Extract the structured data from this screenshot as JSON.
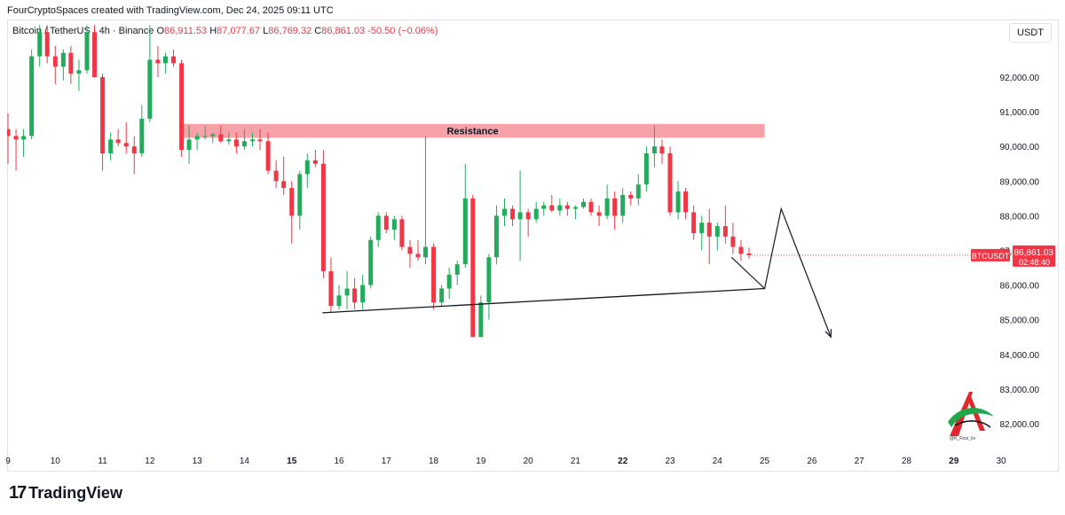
{
  "header": {
    "caption": "FourCryptoSpaces created with TradingView.com, Dec 24, 2025 09:11 UTC",
    "symbol": "Bitcoin / TetherUS · 4h · Binance",
    "o_label": "O",
    "o_value": "86,911.53",
    "h_label": "H",
    "h_value": "87,077.67",
    "l_label": "L",
    "l_value": "86,769.32",
    "c_label": "C",
    "c_value": "86,861.03",
    "change": "-50.50 (−0.06%)"
  },
  "currency_button": "USDT",
  "branding": {
    "logo_mark": "17",
    "logo_word": "TradingView",
    "watermark_text": "@K_Four_kv"
  },
  "colors": {
    "up": "#22ab5a",
    "down": "#f23645",
    "resistance": "#f7a1a8",
    "price_tag": "#f23645"
  },
  "chart_data": {
    "type": "candlestick",
    "price_axis": {
      "ticks": [
        "92,000.00",
        "91,000.00",
        "90,000.00",
        "89,000.00",
        "88,000.00",
        "87,000.00",
        "86,000.00",
        "85,000.00",
        "84,000.00",
        "83,000.00",
        "82,000.00"
      ],
      "ylim": [
        81400,
        93500
      ]
    },
    "time_axis": {
      "ticks": [
        "9",
        "10",
        "11",
        "12",
        "13",
        "14",
        "15",
        "16",
        "17",
        "18",
        "19",
        "20",
        "21",
        "22",
        "23",
        "24",
        "25",
        "26",
        "27",
        "28",
        "29",
        "30"
      ],
      "bold": [
        "15",
        "22",
        "29"
      ]
    },
    "current_price": {
      "symbol": "BTCUSDT",
      "price": "86,861.03",
      "countdown": "02:48:40",
      "value": 86861
    },
    "resistance_zone": {
      "label": "Resistance",
      "low": 90250,
      "high": 90650,
      "from_day": 12.65,
      "to_day": 25.0
    },
    "support_line": {
      "from": [
        15.65,
        85200
      ],
      "to": [
        25.0,
        85900
      ]
    },
    "projection": [
      [
        24.3,
        86800
      ],
      [
        25.0,
        85900
      ],
      [
        25.35,
        88200
      ],
      [
        26.4,
        84500
      ]
    ],
    "candles": [
      {
        "d": 9.0,
        "o": 90500,
        "h": 90950,
        "l": 89500,
        "c": 90300
      },
      {
        "d": 9.17,
        "o": 90300,
        "h": 90500,
        "l": 89300,
        "c": 90200
      },
      {
        "d": 9.33,
        "o": 90200,
        "h": 90500,
        "l": 89700,
        "c": 90300
      },
      {
        "d": 9.5,
        "o": 90300,
        "h": 92800,
        "l": 90200,
        "c": 92600
      },
      {
        "d": 9.67,
        "o": 92600,
        "h": 93500,
        "l": 92300,
        "c": 93300
      },
      {
        "d": 9.83,
        "o": 93300,
        "h": 93500,
        "l": 92400,
        "c": 92600
      },
      {
        "d": 10.0,
        "o": 92600,
        "h": 92900,
        "l": 91800,
        "c": 92300
      },
      {
        "d": 10.17,
        "o": 92300,
        "h": 92800,
        "l": 91900,
        "c": 92700
      },
      {
        "d": 10.33,
        "o": 92700,
        "h": 92900,
        "l": 91800,
        "c": 92100
      },
      {
        "d": 10.5,
        "o": 92100,
        "h": 92500,
        "l": 91600,
        "c": 92200
      },
      {
        "d": 10.67,
        "o": 92200,
        "h": 93500,
        "l": 92100,
        "c": 93300
      },
      {
        "d": 10.83,
        "o": 93300,
        "h": 93500,
        "l": 92000,
        "c": 92000
      },
      {
        "d": 11.0,
        "o": 92000,
        "h": 92100,
        "l": 89300,
        "c": 89800
      },
      {
        "d": 11.17,
        "o": 89800,
        "h": 90400,
        "l": 89600,
        "c": 90200
      },
      {
        "d": 11.33,
        "o": 90200,
        "h": 90500,
        "l": 90000,
        "c": 90100
      },
      {
        "d": 11.5,
        "o": 90100,
        "h": 90700,
        "l": 89800,
        "c": 90000
      },
      {
        "d": 11.67,
        "o": 90000,
        "h": 90300,
        "l": 89200,
        "c": 89800
      },
      {
        "d": 11.83,
        "o": 89800,
        "h": 91200,
        "l": 89700,
        "c": 90800
      },
      {
        "d": 12.0,
        "o": 90800,
        "h": 93500,
        "l": 90700,
        "c": 92500
      },
      {
        "d": 12.17,
        "o": 92500,
        "h": 92900,
        "l": 92000,
        "c": 92400
      },
      {
        "d": 12.33,
        "o": 92400,
        "h": 92700,
        "l": 92100,
        "c": 92600
      },
      {
        "d": 12.5,
        "o": 92600,
        "h": 92800,
        "l": 92300,
        "c": 92400
      },
      {
        "d": 12.67,
        "o": 92400,
        "h": 92500,
        "l": 89700,
        "c": 89900
      },
      {
        "d": 12.83,
        "o": 89900,
        "h": 90600,
        "l": 89500,
        "c": 90200
      },
      {
        "d": 13.0,
        "o": 90200,
        "h": 90400,
        "l": 89900,
        "c": 90300
      },
      {
        "d": 13.17,
        "o": 90300,
        "h": 90600,
        "l": 90200,
        "c": 90300
      },
      {
        "d": 13.33,
        "o": 90300,
        "h": 90400,
        "l": 90100,
        "c": 90350
      },
      {
        "d": 13.5,
        "o": 90350,
        "h": 90600,
        "l": 90100,
        "c": 90150
      },
      {
        "d": 13.67,
        "o": 90150,
        "h": 90400,
        "l": 90050,
        "c": 90200
      },
      {
        "d": 13.83,
        "o": 90200,
        "h": 90400,
        "l": 89800,
        "c": 90000
      },
      {
        "d": 14.0,
        "o": 90000,
        "h": 90500,
        "l": 89900,
        "c": 90150
      },
      {
        "d": 14.17,
        "o": 90150,
        "h": 90400,
        "l": 90000,
        "c": 90200
      },
      {
        "d": 14.33,
        "o": 90200,
        "h": 90500,
        "l": 89900,
        "c": 90150
      },
      {
        "d": 14.5,
        "o": 90150,
        "h": 90400,
        "l": 89200,
        "c": 89300
      },
      {
        "d": 14.67,
        "o": 89300,
        "h": 89600,
        "l": 88800,
        "c": 89000
      },
      {
        "d": 14.83,
        "o": 89000,
        "h": 89700,
        "l": 88600,
        "c": 88800
      },
      {
        "d": 15.0,
        "o": 88800,
        "h": 89000,
        "l": 87200,
        "c": 88000
      },
      {
        "d": 15.17,
        "o": 88000,
        "h": 89300,
        "l": 87600,
        "c": 89200
      },
      {
        "d": 15.33,
        "o": 89200,
        "h": 89800,
        "l": 88800,
        "c": 89600
      },
      {
        "d": 15.5,
        "o": 89600,
        "h": 89900,
        "l": 89400,
        "c": 89500
      },
      {
        "d": 15.67,
        "o": 89500,
        "h": 89900,
        "l": 86200,
        "c": 86400
      },
      {
        "d": 15.83,
        "o": 86400,
        "h": 86800,
        "l": 85200,
        "c": 85400
      },
      {
        "d": 16.0,
        "o": 85400,
        "h": 86000,
        "l": 85300,
        "c": 85700
      },
      {
        "d": 16.17,
        "o": 85700,
        "h": 86400,
        "l": 85300,
        "c": 85900
      },
      {
        "d": 16.33,
        "o": 85900,
        "h": 86200,
        "l": 85300,
        "c": 85500
      },
      {
        "d": 16.5,
        "o": 85500,
        "h": 86300,
        "l": 85300,
        "c": 86000
      },
      {
        "d": 16.67,
        "o": 86000,
        "h": 87400,
        "l": 85900,
        "c": 87300
      },
      {
        "d": 16.83,
        "o": 87300,
        "h": 88100,
        "l": 87100,
        "c": 88000
      },
      {
        "d": 17.0,
        "o": 88000,
        "h": 88100,
        "l": 87500,
        "c": 87600
      },
      {
        "d": 17.17,
        "o": 87600,
        "h": 88000,
        "l": 87300,
        "c": 87900
      },
      {
        "d": 17.33,
        "o": 87900,
        "h": 88000,
        "l": 87000,
        "c": 87100
      },
      {
        "d": 17.5,
        "o": 87100,
        "h": 87300,
        "l": 86500,
        "c": 86900
      },
      {
        "d": 17.67,
        "o": 86900,
        "h": 87300,
        "l": 86700,
        "c": 86800
      },
      {
        "d": 17.83,
        "o": 86800,
        "h": 90300,
        "l": 86600,
        "c": 87100
      },
      {
        "d": 18.0,
        "o": 87100,
        "h": 87200,
        "l": 85300,
        "c": 85500
      },
      {
        "d": 18.17,
        "o": 85500,
        "h": 86000,
        "l": 85400,
        "c": 85900
      },
      {
        "d": 18.33,
        "o": 85900,
        "h": 86500,
        "l": 85600,
        "c": 86300
      },
      {
        "d": 18.5,
        "o": 86300,
        "h": 86700,
        "l": 86000,
        "c": 86600
      },
      {
        "d": 18.67,
        "o": 86600,
        "h": 89500,
        "l": 86500,
        "c": 88500
      },
      {
        "d": 18.83,
        "o": 88500,
        "h": 88600,
        "l": 84500,
        "c": 84500
      },
      {
        "d": 19.0,
        "o": 84500,
        "h": 85700,
        "l": 84500,
        "c": 85500
      },
      {
        "d": 19.17,
        "o": 85500,
        "h": 86900,
        "l": 85000,
        "c": 86800
      },
      {
        "d": 19.33,
        "o": 86800,
        "h": 88300,
        "l": 86600,
        "c": 88000
      },
      {
        "d": 19.5,
        "o": 88000,
        "h": 88500,
        "l": 87700,
        "c": 88200
      },
      {
        "d": 19.67,
        "o": 88200,
        "h": 88300,
        "l": 87700,
        "c": 87900
      },
      {
        "d": 19.83,
        "o": 87900,
        "h": 89300,
        "l": 86700,
        "c": 88100
      },
      {
        "d": 20.0,
        "o": 88100,
        "h": 88200,
        "l": 87400,
        "c": 87900
      },
      {
        "d": 20.17,
        "o": 87900,
        "h": 88400,
        "l": 87800,
        "c": 88200
      },
      {
        "d": 20.33,
        "o": 88200,
        "h": 88400,
        "l": 88000,
        "c": 88300
      },
      {
        "d": 20.5,
        "o": 88300,
        "h": 88600,
        "l": 88100,
        "c": 88150
      },
      {
        "d": 20.67,
        "o": 88150,
        "h": 88500,
        "l": 88000,
        "c": 88300
      },
      {
        "d": 20.83,
        "o": 88300,
        "h": 88400,
        "l": 88000,
        "c": 88200
      },
      {
        "d": 21.0,
        "o": 88200,
        "h": 88300,
        "l": 87900,
        "c": 88250
      },
      {
        "d": 21.17,
        "o": 88250,
        "h": 88500,
        "l": 88200,
        "c": 88400
      },
      {
        "d": 21.33,
        "o": 88400,
        "h": 88500,
        "l": 88000,
        "c": 88100
      },
      {
        "d": 21.5,
        "o": 88100,
        "h": 88300,
        "l": 87700,
        "c": 88000
      },
      {
        "d": 21.67,
        "o": 88000,
        "h": 88900,
        "l": 87900,
        "c": 88500
      },
      {
        "d": 21.83,
        "o": 88500,
        "h": 88700,
        "l": 87600,
        "c": 88000
      },
      {
        "d": 22.0,
        "o": 88000,
        "h": 88800,
        "l": 87800,
        "c": 88600
      },
      {
        "d": 22.17,
        "o": 88600,
        "h": 88700,
        "l": 88300,
        "c": 88500
      },
      {
        "d": 22.33,
        "o": 88500,
        "h": 89200,
        "l": 88300,
        "c": 88900
      },
      {
        "d": 22.5,
        "o": 88900,
        "h": 90000,
        "l": 88700,
        "c": 89800
      },
      {
        "d": 22.67,
        "o": 89800,
        "h": 90600,
        "l": 89400,
        "c": 90000
      },
      {
        "d": 22.83,
        "o": 90000,
        "h": 90200,
        "l": 89500,
        "c": 89800
      },
      {
        "d": 23.0,
        "o": 89800,
        "h": 90000,
        "l": 88000,
        "c": 88100
      },
      {
        "d": 23.17,
        "o": 88100,
        "h": 89000,
        "l": 87900,
        "c": 88700
      },
      {
        "d": 23.33,
        "o": 88700,
        "h": 88800,
        "l": 87900,
        "c": 88100
      },
      {
        "d": 23.5,
        "o": 88100,
        "h": 88300,
        "l": 87300,
        "c": 87500
      },
      {
        "d": 23.67,
        "o": 87500,
        "h": 88000,
        "l": 87000,
        "c": 87800
      },
      {
        "d": 23.83,
        "o": 87800,
        "h": 88200,
        "l": 86600,
        "c": 87400
      },
      {
        "d": 24.0,
        "o": 87400,
        "h": 87800,
        "l": 87000,
        "c": 87700
      },
      {
        "d": 24.17,
        "o": 87700,
        "h": 88300,
        "l": 87200,
        "c": 87400
      },
      {
        "d": 24.33,
        "o": 87400,
        "h": 87800,
        "l": 86900,
        "c": 87100
      },
      {
        "d": 24.5,
        "o": 87100,
        "h": 87300,
        "l": 86700,
        "c": 86900
      },
      {
        "d": 24.67,
        "o": 86911.53,
        "h": 87077.67,
        "l": 86769.32,
        "c": 86861.03
      }
    ]
  }
}
